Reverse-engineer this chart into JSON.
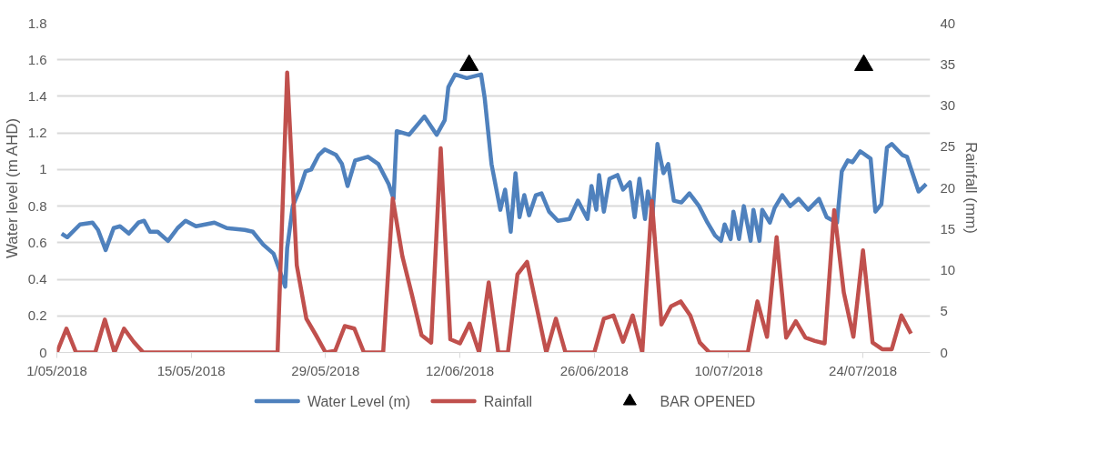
{
  "chart_data": {
    "type": "line",
    "ylabel": "Water level (m AHD)",
    "y2label": "Rainfall (mm)",
    "xlim": [
      "2018-05-01",
      "2018-07-31"
    ],
    "xticks": [
      {
        "value": "2018-05-01",
        "label": "1/05/2018"
      },
      {
        "value": "2018-05-15",
        "label": "15/05/2018"
      },
      {
        "value": "2018-05-29",
        "label": "29/05/2018"
      },
      {
        "value": "2018-06-12",
        "label": "12/06/2018"
      },
      {
        "value": "2018-06-26",
        "label": "26/06/2018"
      },
      {
        "value": "2018-07-10",
        "label": "10/07/2018"
      },
      {
        "value": "2018-07-24",
        "label": "24/07/2018"
      }
    ],
    "ylim": [
      0,
      1.8
    ],
    "yticks": [
      0,
      0.2,
      0.4,
      0.6,
      0.8,
      1,
      1.2,
      1.4,
      1.6,
      1.8
    ],
    "y2lim": [
      0,
      40
    ],
    "y2ticks": [
      0,
      5,
      10,
      15,
      20,
      25,
      30,
      35,
      40
    ],
    "grid": "y",
    "legend": "bottom",
    "marker": "none",
    "line_style": "solid",
    "series": [
      {
        "name": "Water Level (m)",
        "color": "#4f81bd",
        "x": [
          "2018-05-01T12:00",
          "2018-05-02T02:00",
          "2018-05-03T10:00",
          "2018-05-04T17:00",
          "2018-05-05T07:00",
          "2018-05-06T02:00",
          "2018-05-06T22:00",
          "2018-05-07T14:00",
          "2018-05-08T12:00",
          "2018-05-09T12:00",
          "2018-05-10T02:00",
          "2018-05-10T17:00",
          "2018-05-11T12:00",
          "2018-05-12T14:00",
          "2018-05-13T14:00",
          "2018-05-14T10:00",
          "2018-05-15T12:00",
          "2018-05-17T10:00",
          "2018-05-18T17:00",
          "2018-05-20T14:00",
          "2018-05-21T10:00",
          "2018-05-22T12:00",
          "2018-05-23T14:00",
          "2018-05-24T05:00",
          "2018-05-24T19:00",
          "2018-05-25T00:00",
          "2018-05-25T14:00",
          "2018-05-26T07:00",
          "2018-05-26T22:00",
          "2018-05-27T12:00",
          "2018-05-28T07:00",
          "2018-05-28T22:00",
          "2018-05-30T02:00",
          "2018-05-30T17:00",
          "2018-05-31T07:00",
          "2018-06-01T02:00",
          "2018-06-02T10:00",
          "2018-06-03T12:00",
          "2018-06-04T14:00",
          "2018-06-05T02:00",
          "2018-06-05T10:00",
          "2018-06-06T17:00",
          "2018-06-08T07:00",
          "2018-06-09T14:00",
          "2018-06-10T10:00",
          "2018-06-10T19:00",
          "2018-06-11T12:00",
          "2018-06-12T17:00",
          "2018-06-14T05:00",
          "2018-06-14T14:00",
          "2018-06-15T07:00",
          "2018-06-16T05:00",
          "2018-06-16T17:00",
          "2018-06-17T07:00",
          "2018-06-17T19:00",
          "2018-06-18T05:00",
          "2018-06-18T17:00",
          "2018-06-19T05:00",
          "2018-06-19T22:00",
          "2018-06-20T12:00",
          "2018-06-21T07:00",
          "2018-06-22T05:00",
          "2018-06-23T10:00",
          "2018-06-24T07:00",
          "2018-06-25T07:00",
          "2018-06-25T17:00",
          "2018-06-26T05:00",
          "2018-06-26T12:00",
          "2018-06-27T00:00",
          "2018-06-27T14:00",
          "2018-06-28T10:00",
          "2018-06-29T00:00",
          "2018-06-29T17:00",
          "2018-06-30T05:00",
          "2018-06-30T17:00",
          "2018-07-01T07:00",
          "2018-07-01T14:00",
          "2018-07-02T02:00",
          "2018-07-02T14:00",
          "2018-07-03T05:00",
          "2018-07-03T17:00",
          "2018-07-04T07:00",
          "2018-07-05T02:00",
          "2018-07-05T22:00",
          "2018-07-06T22:00",
          "2018-07-07T19:00",
          "2018-07-08T14:00",
          "2018-07-09T05:00",
          "2018-07-09T14:00",
          "2018-07-10T05:00",
          "2018-07-10T12:00",
          "2018-07-11T02:00",
          "2018-07-11T14:00",
          "2018-07-12T07:00",
          "2018-07-12T14:00",
          "2018-07-13T05:00",
          "2018-07-13T12:00",
          "2018-07-14T07:00",
          "2018-07-14T19:00",
          "2018-07-15T14:00",
          "2018-07-16T10:00",
          "2018-07-17T07:00",
          "2018-07-18T07:00",
          "2018-07-19T10:00",
          "2018-07-20T05:00",
          "2018-07-21T07:00",
          "2018-07-21T19:00",
          "2018-07-22T10:00",
          "2018-07-22T22:00",
          "2018-07-23T17:00",
          "2018-07-24T19:00",
          "2018-07-25T07:00",
          "2018-07-25T22:00",
          "2018-07-26T12:00",
          "2018-07-27T00:00",
          "2018-07-28T02:00",
          "2018-07-28T14:00",
          "2018-07-29T19:00",
          "2018-07-30T14:00"
        ],
        "values": [
          0.65,
          0.63,
          0.7,
          0.71,
          0.67,
          0.56,
          0.68,
          0.69,
          0.65,
          0.71,
          0.72,
          0.66,
          0.66,
          0.61,
          0.68,
          0.72,
          0.69,
          0.71,
          0.68,
          0.67,
          0.66,
          0.59,
          0.54,
          0.45,
          0.36,
          0.57,
          0.8,
          0.89,
          0.99,
          1.0,
          1.08,
          1.11,
          1.08,
          1.03,
          0.91,
          1.05,
          1.07,
          1.03,
          0.92,
          0.84,
          1.21,
          1.19,
          1.29,
          1.19,
          1.27,
          1.45,
          1.52,
          1.5,
          1.52,
          1.39,
          1.03,
          0.78,
          0.89,
          0.66,
          0.98,
          0.74,
          0.86,
          0.75,
          0.86,
          0.87,
          0.77,
          0.72,
          0.73,
          0.83,
          0.73,
          0.91,
          0.78,
          0.97,
          0.77,
          0.95,
          0.97,
          0.89,
          0.93,
          0.74,
          0.95,
          0.73,
          0.88,
          0.76,
          1.14,
          0.98,
          1.03,
          0.83,
          0.82,
          0.87,
          0.8,
          0.71,
          0.64,
          0.61,
          0.7,
          0.62,
          0.77,
          0.62,
          0.8,
          0.61,
          0.78,
          0.61,
          0.78,
          0.71,
          0.79,
          0.86,
          0.8,
          0.84,
          0.78,
          0.84,
          0.74,
          0.71,
          0.99,
          1.05,
          1.04,
          1.1,
          1.06,
          0.77,
          0.81,
          1.12,
          1.14,
          1.08,
          1.07,
          0.88,
          0.92
        ]
      },
      {
        "name": "Rainfall",
        "color": "#c0504d",
        "axis": "y2",
        "x": [
          "2018-05-01",
          "2018-05-02",
          "2018-05-03",
          "2018-05-04",
          "2018-05-05",
          "2018-05-06",
          "2018-05-07",
          "2018-05-08",
          "2018-05-09",
          "2018-05-10",
          "2018-05-11",
          "2018-05-12",
          "2018-05-13",
          "2018-05-14",
          "2018-05-15",
          "2018-05-16",
          "2018-05-17",
          "2018-05-18",
          "2018-05-19",
          "2018-05-20",
          "2018-05-21",
          "2018-05-22",
          "2018-05-23",
          "2018-05-24",
          "2018-05-25",
          "2018-05-26",
          "2018-05-27",
          "2018-05-28",
          "2018-05-29",
          "2018-05-30",
          "2018-05-31",
          "2018-06-01",
          "2018-06-02",
          "2018-06-03",
          "2018-06-04",
          "2018-06-05",
          "2018-06-06",
          "2018-06-07",
          "2018-06-08",
          "2018-06-09",
          "2018-06-10",
          "2018-06-11",
          "2018-06-12",
          "2018-06-13",
          "2018-06-14",
          "2018-06-15",
          "2018-06-16",
          "2018-06-17",
          "2018-06-18",
          "2018-06-19",
          "2018-06-20",
          "2018-06-21",
          "2018-06-22",
          "2018-06-23",
          "2018-06-24",
          "2018-06-25",
          "2018-06-26",
          "2018-06-27",
          "2018-06-28",
          "2018-06-29",
          "2018-06-30",
          "2018-07-01",
          "2018-07-02",
          "2018-07-03",
          "2018-07-04",
          "2018-07-05",
          "2018-07-06",
          "2018-07-07",
          "2018-07-08",
          "2018-07-09",
          "2018-07-10",
          "2018-07-11",
          "2018-07-12",
          "2018-07-13",
          "2018-07-14",
          "2018-07-15",
          "2018-07-16",
          "2018-07-17",
          "2018-07-18",
          "2018-07-19",
          "2018-07-20",
          "2018-07-21",
          "2018-07-22",
          "2018-07-23",
          "2018-07-24",
          "2018-07-25",
          "2018-07-26",
          "2018-07-27",
          "2018-07-28",
          "2018-07-29"
        ],
        "values": [
          0,
          2.9,
          0,
          0,
          0,
          4.0,
          0,
          2.9,
          1.3,
          0,
          0,
          0,
          0,
          0,
          0,
          0,
          0,
          0,
          0,
          0,
          0,
          0,
          0,
          0,
          34.0,
          10.6,
          4.1,
          2.1,
          0,
          0.2,
          3.2,
          2.9,
          0,
          0,
          0,
          18.7,
          11.7,
          7.0,
          2.1,
          1.2,
          24.8,
          1.6,
          1.1,
          3.5,
          0,
          8.5,
          0,
          0,
          9.5,
          11.0,
          5.5,
          0,
          4.1,
          0,
          0,
          0,
          0,
          4.1,
          4.5,
          1.3,
          4.5,
          0,
          18.4,
          3.4,
          5.6,
          6.2,
          4.5,
          1.2,
          0,
          0,
          0,
          0,
          0,
          6.2,
          1.9,
          14.0,
          1.8,
          3.8,
          1.8,
          1.4,
          1.1,
          17.3,
          7.3,
          1.9,
          12.4,
          1.2,
          0.4,
          0.4,
          4.5,
          2.3
        ]
      },
      {
        "name": "BAR OPENED",
        "color": "#000000",
        "type": "scatter",
        "marker": "triangle",
        "x": [
          "2018-06-12T23:00",
          "2018-07-24T02:00"
        ],
        "values": [
          1.57,
          1.57
        ]
      }
    ]
  }
}
